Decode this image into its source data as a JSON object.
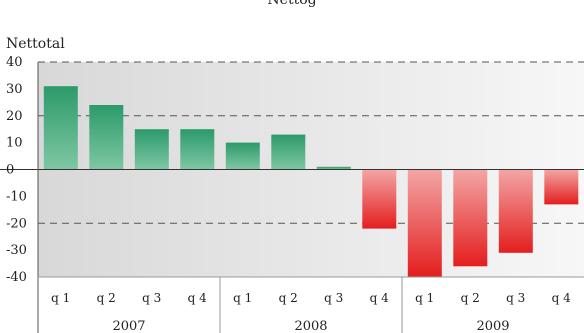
{
  "chart_data": {
    "type": "bar",
    "title": "Nettog",
    "ylabel": "Nettotal",
    "categories": [
      "q 1",
      "q 2",
      "q 3",
      "q 4",
      "q 1",
      "q 2",
      "q 3",
      "q 4",
      "q 1",
      "q 2",
      "q 3",
      "q 4"
    ],
    "groups": [
      {
        "label": "2007",
        "count": 4
      },
      {
        "label": "2008",
        "count": 4
      },
      {
        "label": "2009",
        "count": 4
      }
    ],
    "values": [
      31,
      24,
      15,
      15,
      10,
      13,
      1,
      -22,
      -40,
      -36,
      -31,
      -13
    ],
    "ylim": [
      -40,
      40
    ],
    "yticks": [
      40,
      30,
      20,
      10,
      0,
      -10,
      -20,
      -30,
      -40
    ],
    "dashed_gridlines": [
      40,
      20,
      -20
    ],
    "colors": {
      "positive_top": "#2c9a6a",
      "positive_bottom": "#7fc7a4",
      "negative_top": "#f3a6a6",
      "negative_bottom": "#e41e1e",
      "background_left": "#d8d8d8",
      "background_right": "#f7f7f7"
    }
  }
}
